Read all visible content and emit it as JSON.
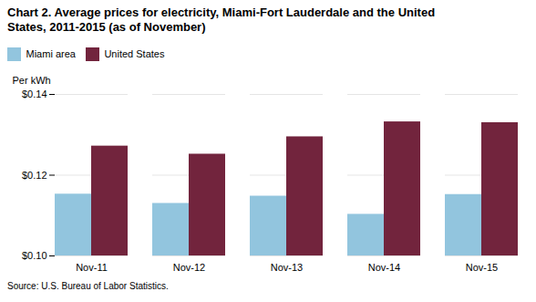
{
  "chart_data": {
    "type": "bar",
    "title": "Chart 2.  Average prices for electricity, Miami-Fort Lauderdale and the United\nStates, 2011-2015 (as of November)",
    "ylabel": "Per kWh",
    "source": "Source:  U.S. Bureau of Labor Statistics.",
    "categories": [
      "Nov-11",
      "Nov-12",
      "Nov-13",
      "Nov-14",
      "Nov-15"
    ],
    "series": [
      {
        "name": "Miami area",
        "color": "#92C5DE",
        "values": [
          0.1153,
          0.113,
          0.1148,
          0.1103,
          0.1152
        ]
      },
      {
        "name": "United States",
        "color": "#72243D",
        "values": [
          0.1272,
          0.1252,
          0.1295,
          0.1332,
          0.133
        ]
      }
    ],
    "ylim": [
      0.1,
      0.14
    ],
    "yticks": [
      {
        "value": 0.1,
        "label": "$0.10"
      },
      {
        "value": 0.12,
        "label": "$0.12"
      },
      {
        "value": 0.14,
        "label": "$0.14"
      }
    ],
    "grid": true,
    "legend": "top"
  }
}
